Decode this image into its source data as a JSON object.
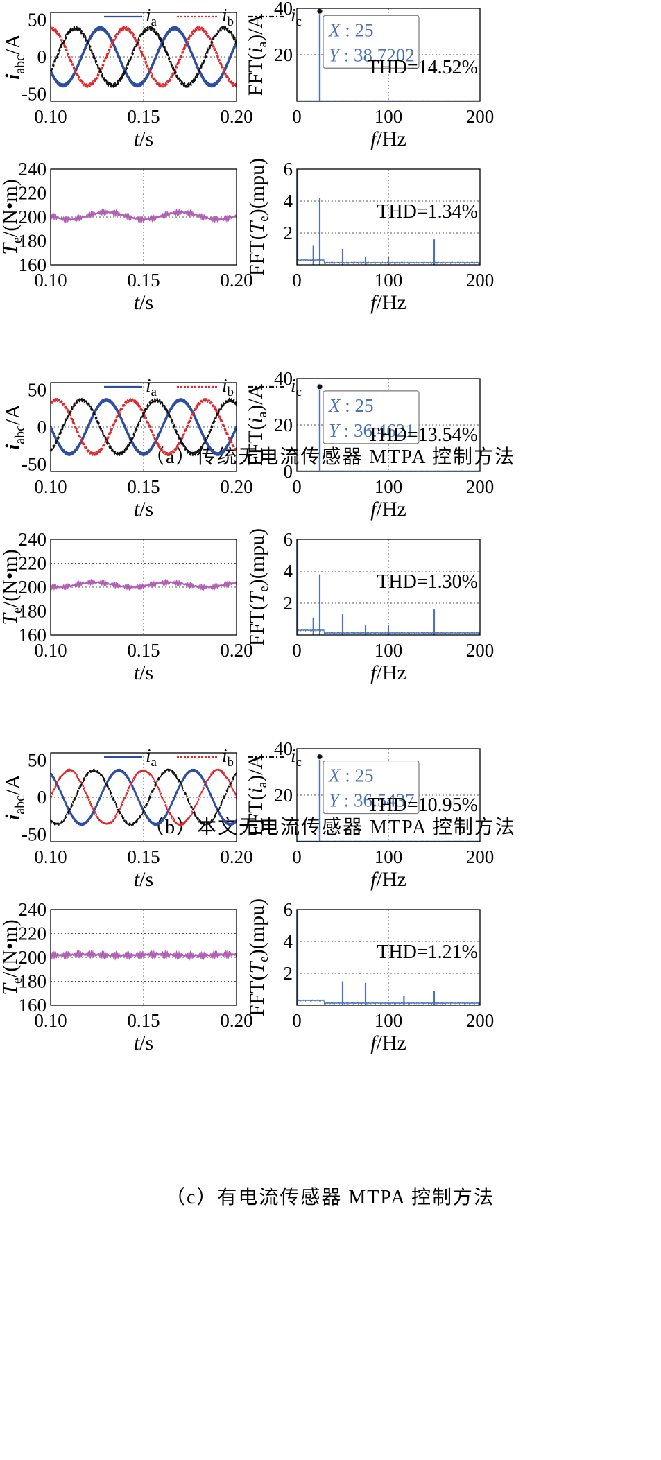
{
  "colors": {
    "ia": "#2c4fa3",
    "ib": "#e0272a",
    "ic": "#111111",
    "torque": "#b05fb4",
    "spectrum": "#4a73b8",
    "datatip": "#4a73b8"
  },
  "legend": {
    "ia": "a",
    "ib": "b",
    "ic": "c",
    "i": "i"
  },
  "groups": [
    {
      "caption": "（a）传统无电流传感器 MTPA 控制方法",
      "current": {
        "type": "line",
        "xlabel": "t/s",
        "ylabel_main": "i",
        "ylabel_sub": "abc",
        "ylabel_unit": "/A",
        "xlim": [
          0.1,
          0.2
        ],
        "ylim": [
          -60,
          60
        ],
        "xticks": [
          "0.10",
          "0.15",
          "0.20"
        ],
        "yticks": [
          -50,
          0,
          50
        ],
        "amplitude": 38.7,
        "frequency_hz": 25,
        "phase_a_deg": 30,
        "ripple": 2.0
      },
      "current_fft": {
        "type": "bar",
        "xlabel": "f/Hz",
        "ylabel": "FFT(i_a)/A",
        "xlim": [
          0,
          200
        ],
        "ylim": [
          0,
          40
        ],
        "xticks": [
          0,
          100,
          200
        ],
        "yticks": [
          20,
          40
        ],
        "peaks": [
          [
            25,
            38.7202
          ]
        ],
        "thd": "THD=14.52%",
        "datatip": {
          "x_label": "X",
          "x_value": "25",
          "y_label": "Y",
          "y_value": "38.7202"
        }
      },
      "torque": {
        "type": "line",
        "xlabel": "t/s",
        "ylabel_main": "T",
        "ylabel_sub": "e",
        "ylabel_unit": "/(N•m)",
        "xlim": [
          0.1,
          0.2
        ],
        "ylim": [
          160,
          240
        ],
        "xticks": [
          "0.10",
          "0.15",
          "0.20"
        ],
        "yticks": [
          160,
          180,
          200,
          220,
          240
        ],
        "mean": 201,
        "slow_amplitude": 3,
        "ripple": 2.5
      },
      "torque_fft": {
        "type": "bar",
        "xlabel": "f/Hz",
        "ylabel": "FFT(T_e)(mpu)",
        "xlim": [
          0,
          200
        ],
        "ylim": [
          0,
          6
        ],
        "xticks": [
          0,
          100,
          200
        ],
        "yticks": [
          2,
          4,
          6
        ],
        "peaks": [
          [
            0,
            6.0
          ],
          [
            18,
            1.2
          ],
          [
            25,
            4.2
          ],
          [
            50,
            1.0
          ],
          [
            75,
            0.5
          ],
          [
            100,
            0.5
          ],
          [
            150,
            1.6
          ]
        ],
        "thd": "THD=1.34%"
      }
    },
    {
      "caption": "（b）本文无电流传感器 MTPA 控制方法",
      "current": {
        "type": "line",
        "xlabel": "t/s",
        "ylabel_main": "i",
        "ylabel_sub": "abc",
        "ylabel_unit": "/A",
        "xlim": [
          0.1,
          0.2
        ],
        "ylim": [
          -60,
          60
        ],
        "xticks": [
          "0.10",
          "0.15",
          "0.20"
        ],
        "yticks": [
          -50,
          0,
          50
        ],
        "amplitude": 36.5,
        "frequency_hz": 25,
        "phase_a_deg": 0,
        "ripple": 1.8
      },
      "current_fft": {
        "type": "bar",
        "xlabel": "f/Hz",
        "ylabel": "FFT(i_a)/A",
        "xlim": [
          0,
          200
        ],
        "ylim": [
          0,
          40
        ],
        "xticks": [
          0,
          100,
          200
        ],
        "yticks": [
          0,
          20,
          40
        ],
        "peaks": [
          [
            25,
            36.4621
          ]
        ],
        "thd": "THD=13.54%",
        "datatip": {
          "x_label": "X",
          "x_value": "25",
          "y_label": "Y",
          "y_value": "36.4621"
        }
      },
      "torque": {
        "type": "line",
        "xlabel": "t/s",
        "ylabel_main": "T",
        "ylabel_sub": "e",
        "ylabel_unit": "/(N•m)",
        "xlim": [
          0.1,
          0.2
        ],
        "ylim": [
          160,
          240
        ],
        "xticks": [
          "0.10",
          "0.15",
          "0.20"
        ],
        "yticks": [
          160,
          180,
          200,
          220,
          240
        ],
        "mean": 202,
        "slow_amplitude": 2,
        "ripple": 2.3
      },
      "torque_fft": {
        "type": "bar",
        "xlabel": "f/Hz",
        "ylabel": "FFT(T_e)(mpu)",
        "xlim": [
          0,
          200
        ],
        "ylim": [
          0,
          6
        ],
        "xticks": [
          0,
          100,
          200
        ],
        "yticks": [
          2,
          4,
          6
        ],
        "peaks": [
          [
            0,
            6.0
          ],
          [
            18,
            1.1
          ],
          [
            25,
            3.8
          ],
          [
            50,
            1.3
          ],
          [
            75,
            0.6
          ],
          [
            100,
            0.6
          ],
          [
            150,
            1.6
          ]
        ],
        "thd": "THD=1.30%"
      }
    },
    {
      "caption": "（c）有电流传感器 MTPA 控制方法",
      "current": {
        "type": "line",
        "xlabel": "t/s",
        "ylabel_main": "i",
        "ylabel_sub": "abc",
        "ylabel_unit": "/A",
        "xlim": [
          0.1,
          0.2
        ],
        "ylim": [
          -60,
          60
        ],
        "xticks": [
          "0.10",
          "0.15",
          "0.20"
        ],
        "yticks": [
          -50,
          0,
          50
        ],
        "amplitude": 36.5,
        "frequency_hz": 25,
        "phase_a_deg": -60,
        "ripple": 1.2
      },
      "current_fft": {
        "type": "bar",
        "xlabel": "f/Hz",
        "ylabel": "FFT(i_a)/A",
        "xlim": [
          0,
          200
        ],
        "ylim": [
          0,
          40
        ],
        "xticks": [
          0,
          100,
          200
        ],
        "yticks": [
          20,
          40
        ],
        "peaks": [
          [
            25,
            36.5437
          ]
        ],
        "thd": "THD=10.95%",
        "datatip": {
          "x_label": "X",
          "x_value": "25",
          "y_label": "Y",
          "y_value": "36.5437"
        }
      },
      "torque": {
        "type": "line",
        "xlabel": "t/s",
        "ylabel_main": "T",
        "ylabel_sub": "e",
        "ylabel_unit": "/(N•m)",
        "xlim": [
          0.1,
          0.2
        ],
        "ylim": [
          160,
          240
        ],
        "xticks": [
          "0.10",
          "0.15",
          "0.20"
        ],
        "yticks": [
          160,
          180,
          200,
          220,
          240
        ],
        "mean": 202,
        "slow_amplitude": 0.5,
        "ripple": 3.0
      },
      "torque_fft": {
        "type": "bar",
        "xlabel": "f/Hz",
        "ylabel": "FFT(T_e)(mpu)",
        "xlim": [
          0,
          200
        ],
        "ylim": [
          0,
          6
        ],
        "xticks": [
          0,
          100,
          200
        ],
        "yticks": [
          2,
          4,
          6
        ],
        "peaks": [
          [
            0,
            6.0
          ],
          [
            50,
            1.5
          ],
          [
            75,
            1.4
          ],
          [
            117,
            0.6
          ],
          [
            150,
            0.9
          ]
        ],
        "thd": "THD=1.21%"
      }
    }
  ]
}
